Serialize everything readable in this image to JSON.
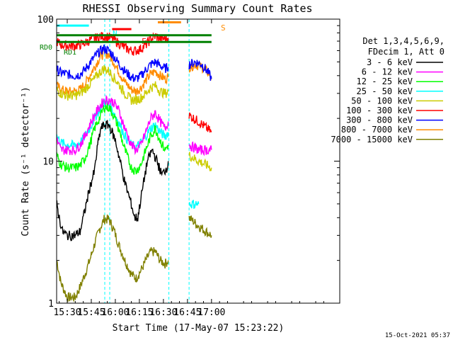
{
  "chart_data": {
    "type": "line",
    "title": "RHESSI Observing Summary Count Rates",
    "xlabel": "Start Time (17-May-07 15:23:22)",
    "ylabel": "Count Rate (s⁻¹ detector⁻¹)",
    "yscale": "log",
    "ylim": [
      1,
      100
    ],
    "xlim_minutes": [
      1523.37,
      1700.0
    ],
    "x_ticks": [
      {
        "label": "15:30",
        "min": 1530
      },
      {
        "label": "15:45",
        "min": 1545
      },
      {
        "label": "16:00",
        "min": 1560
      },
      {
        "label": "16:15",
        "min": 1575
      },
      {
        "label": "16:30",
        "min": 1590
      },
      {
        "label": "16:45",
        "min": 1605
      },
      {
        "label": "17:00",
        "min": 1620
      }
    ],
    "y_ticks": [
      {
        "label": "1",
        "value": 1
      },
      {
        "label": "10",
        "value": 10
      },
      {
        "label": "100",
        "value": 100
      }
    ],
    "timestamp": "15-Oct-2021 05:37",
    "legend": {
      "header": [
        "Det 1,3,4,5,6,9,",
        "FDecim 1, Att 0"
      ],
      "placement": "right"
    },
    "gaps": [
      [
        1553.4,
        1556.5
      ],
      [
        1593.4,
        1606.0
      ]
    ],
    "series": [
      {
        "name": "3 - 6 keV",
        "color": "#000000",
        "points": [
          [
            1523.5,
            5.0
          ],
          [
            1525,
            4.0
          ],
          [
            1527,
            3.2
          ],
          [
            1530,
            3.0
          ],
          [
            1535,
            3.0
          ],
          [
            1538,
            3.2
          ],
          [
            1541,
            4.5
          ],
          [
            1544,
            6.5
          ],
          [
            1547,
            8.5
          ],
          [
            1549,
            13.0
          ],
          [
            1551,
            17.0
          ],
          [
            1553,
            18.0
          ],
          [
            1556,
            18.0
          ],
          [
            1558,
            16.0
          ],
          [
            1560,
            14.0
          ],
          [
            1563,
            10.0
          ],
          [
            1566,
            7.0
          ],
          [
            1570,
            5.0
          ],
          [
            1572,
            4.0
          ],
          [
            1574,
            4.0
          ],
          [
            1576,
            5.5
          ],
          [
            1578,
            7.5
          ],
          [
            1580,
            10.0
          ],
          [
            1583,
            12.0
          ],
          [
            1586,
            10.0
          ],
          [
            1589,
            8.0
          ],
          [
            1592,
            9.0
          ],
          [
            1593,
            10.0
          ]
        ]
      },
      {
        "name": "6 - 12 keV",
        "color": "#ff00ff",
        "points": [
          [
            1523.5,
            14.0
          ],
          [
            1526,
            12.0
          ],
          [
            1530,
            12.0
          ],
          [
            1535,
            12.0
          ],
          [
            1538,
            13.0
          ],
          [
            1541,
            15.0
          ],
          [
            1544,
            18.0
          ],
          [
            1547,
            21.0
          ],
          [
            1550,
            24.0
          ],
          [
            1553,
            27.0
          ],
          [
            1556,
            27.0
          ],
          [
            1559,
            26.0
          ],
          [
            1562,
            23.0
          ],
          [
            1566,
            17.0
          ],
          [
            1570,
            13.0
          ],
          [
            1573,
            12.0
          ],
          [
            1576,
            13.0
          ],
          [
            1579,
            16.0
          ],
          [
            1582,
            20.0
          ],
          [
            1585,
            22.0
          ],
          [
            1588,
            19.0
          ],
          [
            1591,
            17.0
          ],
          [
            1593,
            19.0
          ],
          [
            1606,
            13.0
          ],
          [
            1612,
            12.0
          ],
          [
            1620,
            12.0
          ]
        ]
      },
      {
        "name": "12 - 25 keV",
        "color": "#00ff00",
        "points": [
          [
            1523.5,
            11.0
          ],
          [
            1526,
            9.5
          ],
          [
            1530,
            9.0
          ],
          [
            1535,
            9.0
          ],
          [
            1538,
            9.3
          ],
          [
            1541,
            10.5
          ],
          [
            1544,
            13.0
          ],
          [
            1547,
            17.0
          ],
          [
            1550,
            20.0
          ],
          [
            1553,
            24.0
          ],
          [
            1556,
            24.0
          ],
          [
            1559,
            21.0
          ],
          [
            1562,
            17.0
          ],
          [
            1566,
            12.0
          ],
          [
            1570,
            9.0
          ],
          [
            1573,
            8.5
          ],
          [
            1576,
            9.5
          ],
          [
            1579,
            12.0
          ],
          [
            1582,
            15.0
          ],
          [
            1585,
            17.0
          ],
          [
            1588,
            14.0
          ],
          [
            1591,
            12.0
          ],
          [
            1593,
            13.0
          ]
        ]
      },
      {
        "name": "25 - 50 keV",
        "color": "#00ffff",
        "points": [
          [
            1523.5,
            15.0
          ],
          [
            1526,
            13.5
          ],
          [
            1530,
            13.0
          ],
          [
            1535,
            13.0
          ],
          [
            1538,
            13.5
          ],
          [
            1541,
            15.0
          ],
          [
            1544,
            17.0
          ],
          [
            1547,
            20.0
          ],
          [
            1550,
            23.0
          ],
          [
            1553,
            26.0
          ],
          [
            1556,
            25.0
          ],
          [
            1559,
            22.0
          ],
          [
            1562,
            19.0
          ],
          [
            1566,
            15.0
          ],
          [
            1570,
            13.0
          ],
          [
            1573,
            12.5
          ],
          [
            1576,
            13.5
          ],
          [
            1579,
            15.0
          ],
          [
            1582,
            17.0
          ],
          [
            1585,
            18.0
          ],
          [
            1588,
            16.0
          ],
          [
            1591,
            15.0
          ],
          [
            1593,
            16.0
          ],
          [
            1606,
            5.0
          ],
          [
            1612,
            5.0
          ]
        ]
      },
      {
        "name": "50 - 100 keV",
        "color": "#cccc00",
        "points": [
          [
            1523.5,
            32.0
          ],
          [
            1526,
            30.0
          ],
          [
            1530,
            29.0
          ],
          [
            1535,
            29.0
          ],
          [
            1538,
            30.0
          ],
          [
            1541,
            32.0
          ],
          [
            1544,
            35.0
          ],
          [
            1547,
            38.0
          ],
          [
            1550,
            42.0
          ],
          [
            1553,
            45.0
          ],
          [
            1556,
            43.0
          ],
          [
            1559,
            39.0
          ],
          [
            1562,
            35.0
          ],
          [
            1566,
            30.0
          ],
          [
            1570,
            27.0
          ],
          [
            1573,
            27.0
          ],
          [
            1576,
            28.0
          ],
          [
            1579,
            30.0
          ],
          [
            1582,
            33.0
          ],
          [
            1585,
            34.0
          ],
          [
            1588,
            31.0
          ],
          [
            1591,
            30.0
          ],
          [
            1593,
            31.0
          ],
          [
            1606,
            11.0
          ],
          [
            1612,
            10.0
          ],
          [
            1620,
            9.0
          ]
        ]
      },
      {
        "name": "100 - 300 keV",
        "color": "#ff0000",
        "points": [
          [
            1523.5,
            70.0
          ],
          [
            1526,
            66.0
          ],
          [
            1530,
            65.0
          ],
          [
            1535,
            65.0
          ],
          [
            1538,
            66.0
          ],
          [
            1541,
            68.0
          ],
          [
            1544,
            71.0
          ],
          [
            1547,
            73.0
          ],
          [
            1550,
            75.0
          ],
          [
            1553,
            76.0
          ],
          [
            1556,
            75.0
          ],
          [
            1559,
            72.0
          ],
          [
            1562,
            68.0
          ],
          [
            1566,
            63.0
          ],
          [
            1570,
            60.0
          ],
          [
            1573,
            60.0
          ],
          [
            1576,
            62.0
          ],
          [
            1579,
            66.0
          ],
          [
            1582,
            72.0
          ],
          [
            1585,
            76.0
          ],
          [
            1588,
            73.0
          ],
          [
            1591,
            73.0
          ],
          [
            1593,
            74.0
          ],
          [
            1606,
            21.0
          ],
          [
            1612,
            19.0
          ],
          [
            1620,
            16.0
          ]
        ]
      },
      {
        "name": "300 - 800 keV",
        "color": "#0000ff",
        "points": [
          [
            1523.5,
            44.0
          ],
          [
            1526,
            42.0
          ],
          [
            1530,
            41.0
          ],
          [
            1535,
            40.0
          ],
          [
            1538,
            41.0
          ],
          [
            1541,
            44.0
          ],
          [
            1544,
            49.0
          ],
          [
            1547,
            54.0
          ],
          [
            1550,
            59.0
          ],
          [
            1553,
            62.0
          ],
          [
            1556,
            60.0
          ],
          [
            1559,
            55.0
          ],
          [
            1562,
            49.0
          ],
          [
            1566,
            43.0
          ],
          [
            1570,
            39.0
          ],
          [
            1573,
            38.0
          ],
          [
            1576,
            40.0
          ],
          [
            1579,
            44.0
          ],
          [
            1582,
            48.0
          ],
          [
            1585,
            50.0
          ],
          [
            1588,
            47.0
          ],
          [
            1591,
            45.0
          ],
          [
            1593,
            46.0
          ],
          [
            1606,
            48.0
          ],
          [
            1610,
            50.0
          ],
          [
            1614,
            48.0
          ],
          [
            1618,
            42.0
          ],
          [
            1620,
            38.0
          ]
        ]
      },
      {
        "name": "800 - 7000 keV",
        "color": "#ff8c00",
        "points": [
          [
            1523.5,
            34.0
          ],
          [
            1526,
            32.0
          ],
          [
            1530,
            31.0
          ],
          [
            1535,
            31.0
          ],
          [
            1538,
            32.0
          ],
          [
            1541,
            35.0
          ],
          [
            1544,
            40.0
          ],
          [
            1547,
            46.0
          ],
          [
            1550,
            53.0
          ],
          [
            1553,
            58.0
          ],
          [
            1556,
            56.0
          ],
          [
            1559,
            50.0
          ],
          [
            1562,
            43.0
          ],
          [
            1566,
            36.0
          ],
          [
            1570,
            32.0
          ],
          [
            1573,
            31.0
          ],
          [
            1576,
            33.0
          ],
          [
            1579,
            37.0
          ],
          [
            1582,
            41.0
          ],
          [
            1585,
            43.0
          ],
          [
            1588,
            40.0
          ],
          [
            1591,
            38.0
          ],
          [
            1593,
            39.0
          ],
          [
            1606,
            46.0
          ],
          [
            1610,
            48.0
          ],
          [
            1614,
            46.0
          ],
          [
            1618,
            42.0
          ],
          [
            1620,
            39.0
          ]
        ]
      },
      {
        "name": "7000 - 15000 keV",
        "color": "#808000",
        "points": [
          [
            1523.5,
            2.0
          ],
          [
            1526,
            1.4
          ],
          [
            1530,
            1.1
          ],
          [
            1535,
            1.1
          ],
          [
            1538,
            1.3
          ],
          [
            1541,
            1.6
          ],
          [
            1544,
            2.0
          ],
          [
            1547,
            2.6
          ],
          [
            1550,
            3.3
          ],
          [
            1553,
            3.9
          ],
          [
            1556,
            3.9
          ],
          [
            1559,
            3.3
          ],
          [
            1562,
            2.6
          ],
          [
            1566,
            2.0
          ],
          [
            1570,
            1.6
          ],
          [
            1573,
            1.5
          ],
          [
            1576,
            1.7
          ],
          [
            1579,
            2.0
          ],
          [
            1582,
            2.3
          ],
          [
            1585,
            2.3
          ],
          [
            1588,
            2.0
          ],
          [
            1591,
            1.9
          ],
          [
            1593,
            2.0
          ],
          [
            1606,
            4.0
          ],
          [
            1612,
            3.5
          ],
          [
            1620,
            3.0
          ]
        ]
      }
    ],
    "annotations": {
      "N": {
        "label": "N",
        "color": "#00ffff",
        "min_start": 1523.5,
        "min_end": 1543.5,
        "value": 90
      },
      "F": {
        "label": "F",
        "color": "#ff0000",
        "min_start": 1558.0,
        "min_end": 1570.0,
        "value": 85
      },
      "S": {
        "label": "S",
        "color": "#ff8c00",
        "min_start": 1586.5,
        "min_end": 1601.0,
        "value": 95
      },
      "RD0": {
        "label": "RD0",
        "color": "#008000",
        "min_start": 1523.5,
        "min_end": 1620.0,
        "value": 77
      },
      "RD1": {
        "label": "RD1",
        "color": "#008000",
        "min_start": 1523.5,
        "min_end": 1620.0,
        "value": 69
      }
    }
  }
}
